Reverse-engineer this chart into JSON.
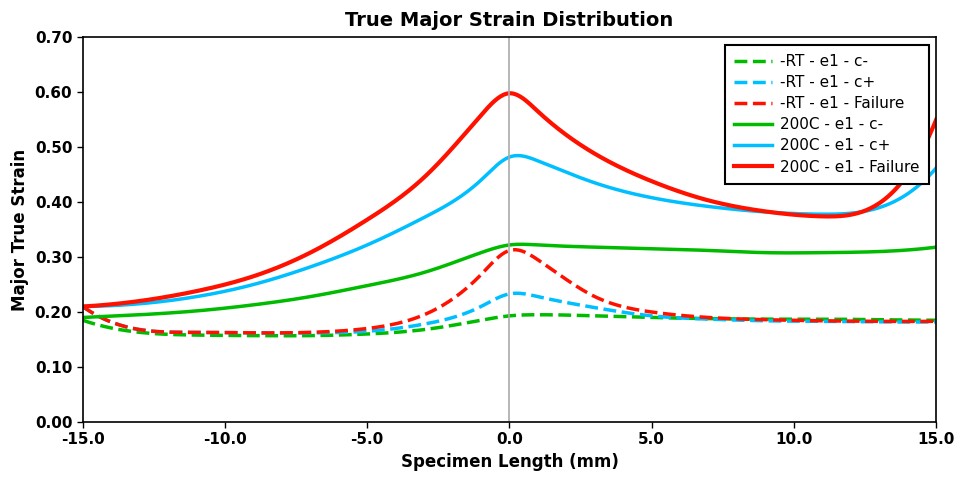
{
  "title": "True Major Strain Distribution",
  "xlabel": "Specimen Length (mm)",
  "ylabel": "Major True Strain",
  "xlim": [
    -15.0,
    15.0
  ],
  "ylim": [
    0.0,
    0.7
  ],
  "yticks": [
    0.0,
    0.1,
    0.2,
    0.3,
    0.4,
    0.5,
    0.6,
    0.7
  ],
  "xticks": [
    -15.0,
    -10.0,
    -5.0,
    0.0,
    5.0,
    10.0,
    15.0
  ],
  "series": [
    {
      "label": "-RT - e1 - c-",
      "color": "#00BB00",
      "linestyle": "dashed",
      "linewidth": 2.5,
      "x": [
        -15,
        -13,
        -11,
        -9,
        -7,
        -5,
        -3,
        -1,
        0,
        1,
        3,
        5,
        7,
        9,
        11,
        13,
        15
      ],
      "y": [
        0.185,
        0.163,
        0.158,
        0.157,
        0.157,
        0.16,
        0.168,
        0.185,
        0.193,
        0.195,
        0.193,
        0.19,
        0.188,
        0.187,
        0.187,
        0.186,
        0.185
      ]
    },
    {
      "label": "-RT - e1 - c+",
      "color": "#00BFFF",
      "linestyle": "dashed",
      "linewidth": 2.5,
      "x": [
        -15,
        -13,
        -11,
        -9,
        -7,
        -5,
        -3,
        -1,
        0,
        1,
        3,
        5,
        7,
        9,
        11,
        13,
        15
      ],
      "y": [
        0.21,
        0.168,
        0.163,
        0.162,
        0.162,
        0.165,
        0.178,
        0.21,
        0.233,
        0.228,
        0.208,
        0.193,
        0.187,
        0.184,
        0.183,
        0.182,
        0.182
      ]
    },
    {
      "label": "-RT - e1 - Failure",
      "color": "#FF1100",
      "linestyle": "dashed",
      "linewidth": 2.5,
      "x": [
        -15,
        -13,
        -11,
        -9,
        -7,
        -5,
        -3,
        -1,
        0,
        1,
        3,
        5,
        7,
        9,
        11,
        13,
        15
      ],
      "y": [
        0.21,
        0.168,
        0.163,
        0.162,
        0.163,
        0.17,
        0.195,
        0.268,
        0.312,
        0.295,
        0.228,
        0.2,
        0.19,
        0.186,
        0.184,
        0.183,
        0.183
      ]
    },
    {
      "label": "200C - e1 - c-",
      "color": "#00BB00",
      "linestyle": "solid",
      "linewidth": 2.5,
      "x": [
        -15,
        -13,
        -11,
        -9,
        -7,
        -5,
        -3,
        -1,
        0,
        1,
        3,
        5,
        7,
        9,
        11,
        13,
        15
      ],
      "y": [
        0.19,
        0.195,
        0.202,
        0.213,
        0.228,
        0.248,
        0.272,
        0.308,
        0.322,
        0.322,
        0.318,
        0.315,
        0.312,
        0.308,
        0.308,
        0.31,
        0.318
      ]
    },
    {
      "label": "200C - e1 - c+",
      "color": "#00BFFF",
      "linestyle": "solid",
      "linewidth": 2.5,
      "x": [
        -15,
        -13,
        -11,
        -9,
        -7,
        -5,
        -3,
        -1,
        0,
        1,
        3,
        5,
        7,
        9,
        11,
        13,
        15
      ],
      "y": [
        0.21,
        0.215,
        0.228,
        0.25,
        0.282,
        0.322,
        0.372,
        0.44,
        0.482,
        0.475,
        0.435,
        0.408,
        0.392,
        0.382,
        0.378,
        0.39,
        0.462
      ]
    },
    {
      "label": "200C - e1 - Failure",
      "color": "#FF1100",
      "linestyle": "solid",
      "linewidth": 3.0,
      "x": [
        -15,
        -13,
        -11,
        -9,
        -7,
        -5,
        -3,
        -1,
        0,
        1,
        3,
        5,
        7,
        9,
        11,
        13,
        15
      ],
      "y": [
        0.21,
        0.22,
        0.238,
        0.265,
        0.308,
        0.368,
        0.445,
        0.558,
        0.598,
        0.565,
        0.488,
        0.438,
        0.403,
        0.383,
        0.374,
        0.398,
        0.55
      ]
    }
  ],
  "legend_loc": "upper right",
  "vline_x": 0.0,
  "vline_color": "#AAAAAA",
  "vline_linewidth": 1.2,
  "background_color": "#FFFFFF",
  "plot_bg_color": "#FFFFFF",
  "title_fontsize": 14,
  "label_fontsize": 12,
  "tick_fontsize": 11,
  "legend_fontsize": 11,
  "figure_width": 9.66,
  "figure_height": 4.82,
  "dpi": 100
}
